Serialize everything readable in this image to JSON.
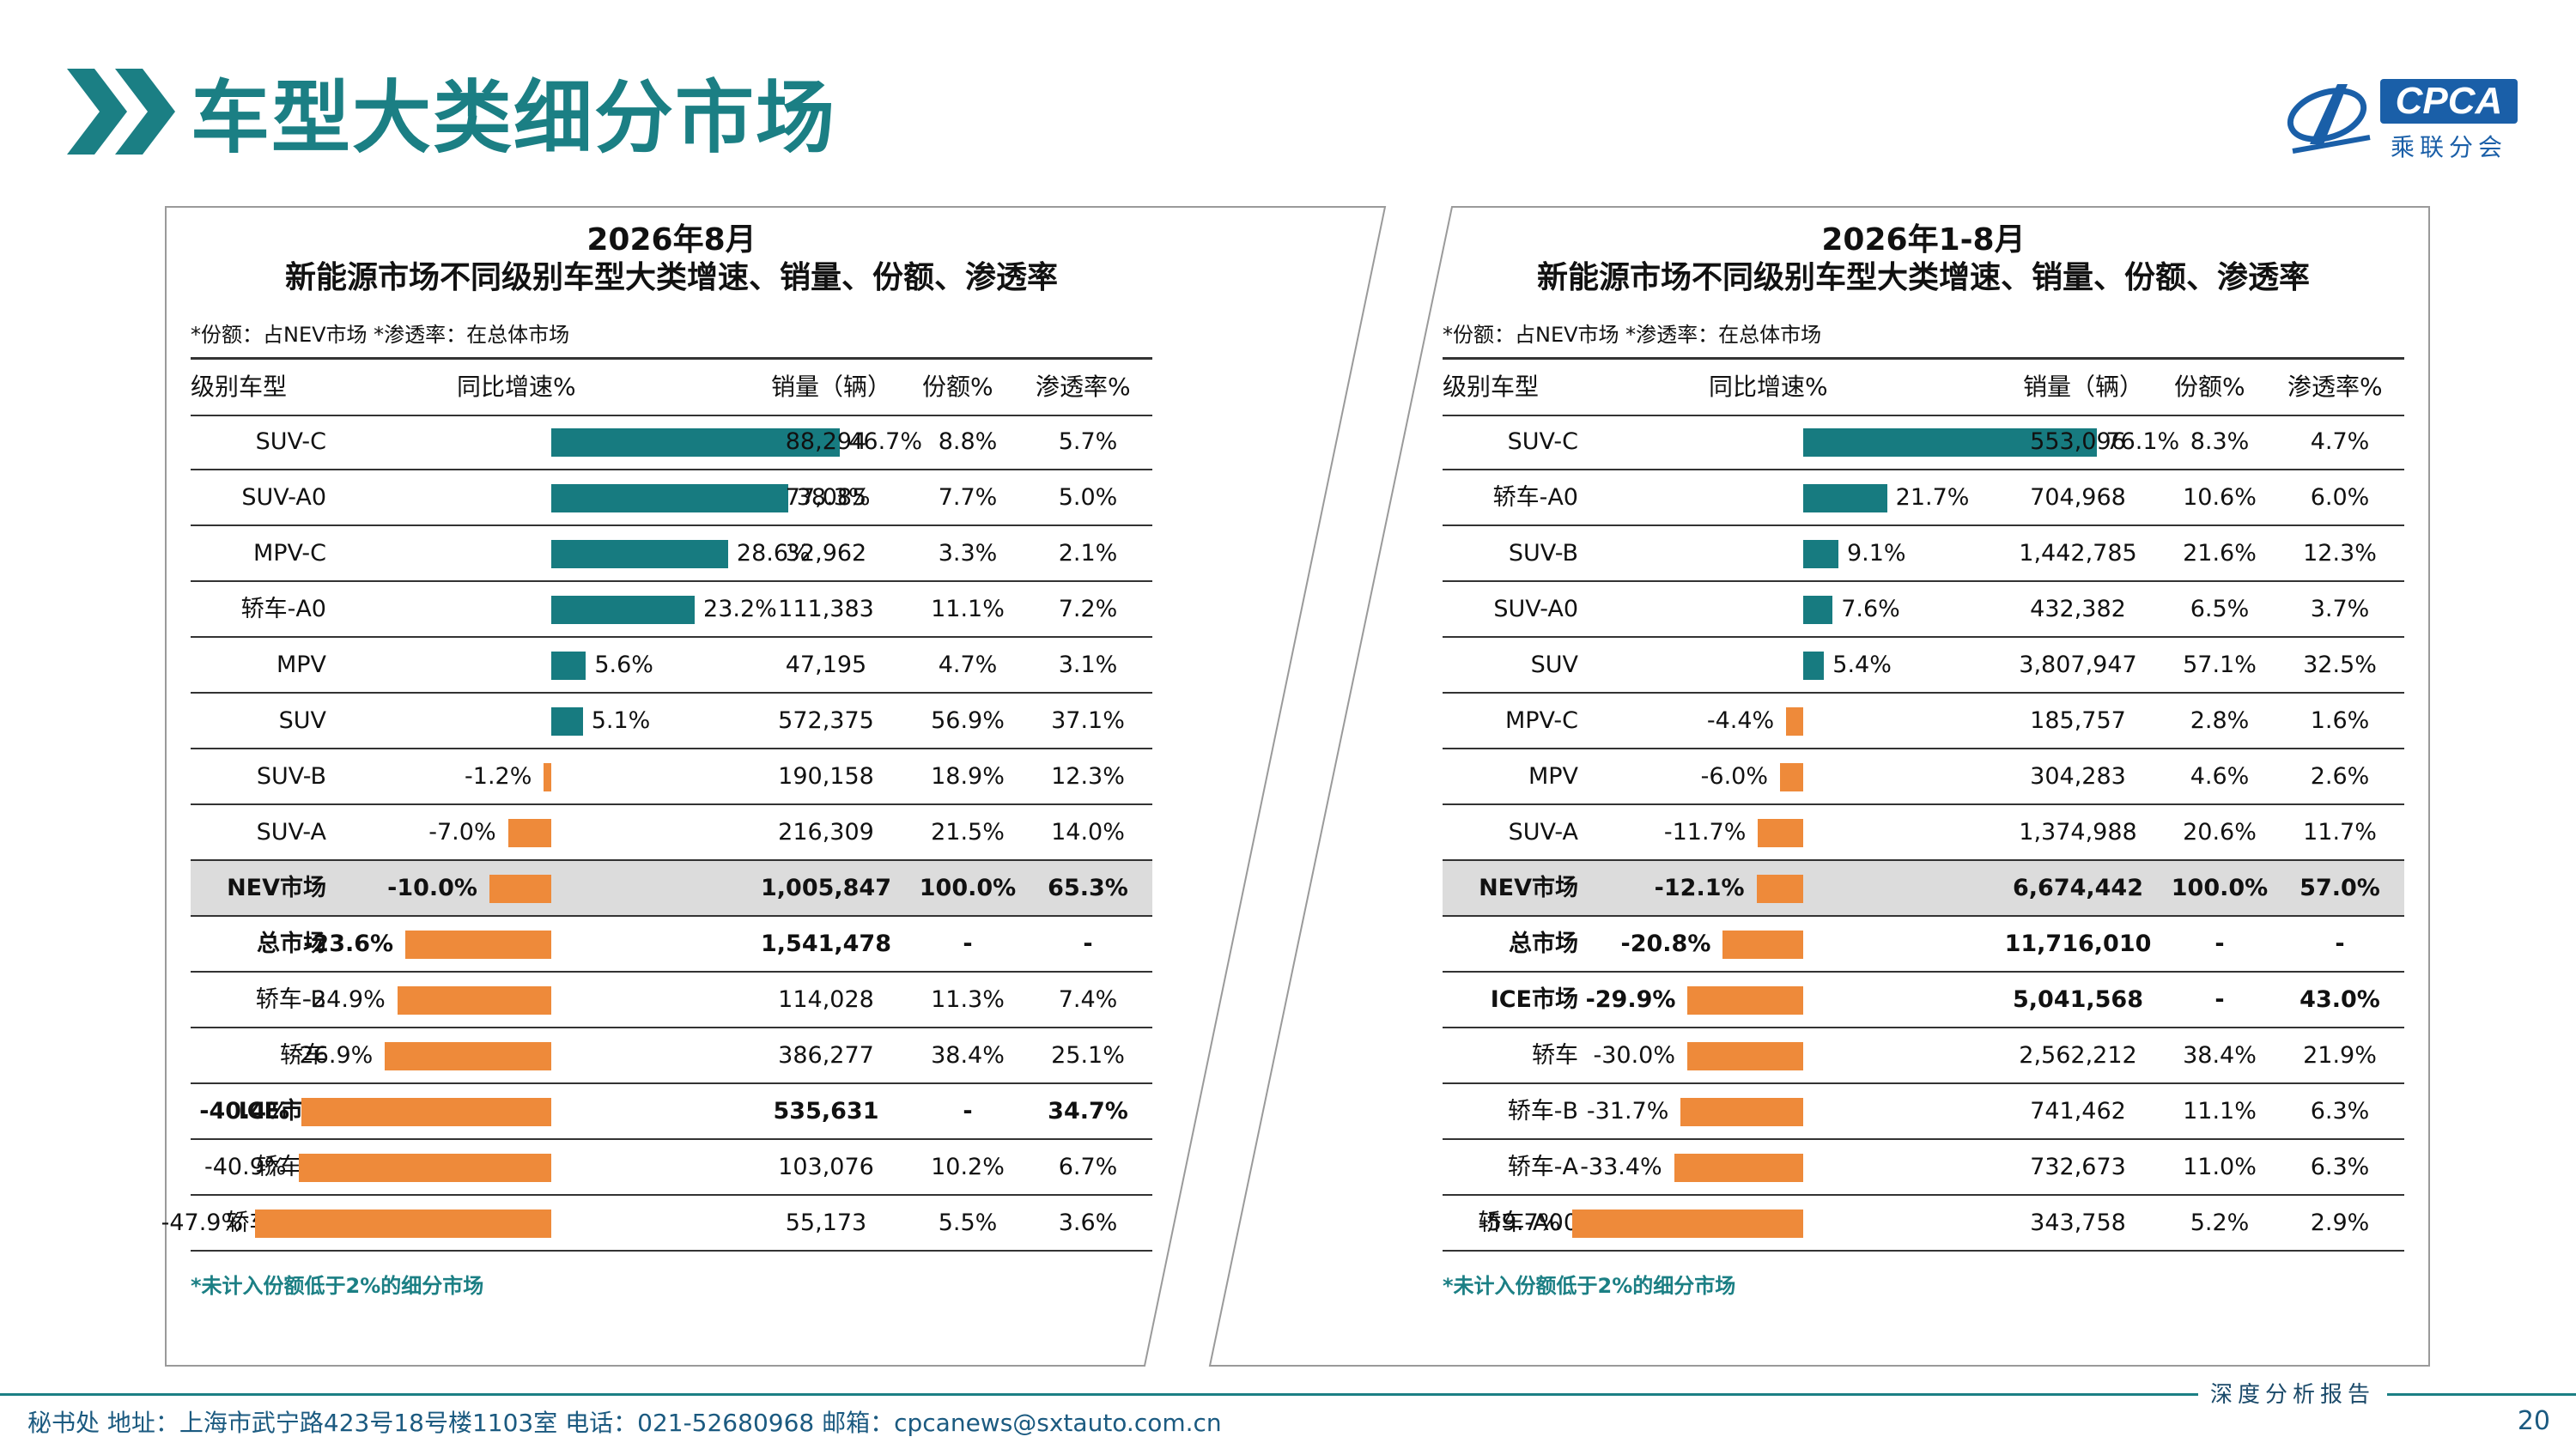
{
  "page": {
    "title": "车型大类细分市场",
    "page_number": "20"
  },
  "logo": {
    "word": "CPCA",
    "sub": "乘联分会"
  },
  "colors": {
    "accent": "#1b7f84",
    "positive_bar": "#177b80",
    "negative_bar": "#ee8a3a",
    "highlight_row": "#dcdcdc"
  },
  "columns": {
    "segment": "级别车型",
    "growth": "同比增速%",
    "sales": "销量（辆）",
    "share": "份额%",
    "penetration": "渗透率%"
  },
  "panels": [
    {
      "title_line1": "2026年8月",
      "title_line2": "新能源市场不同级别车型大类增速、销量、份额、渗透率",
      "note": "*份额：占NEV市场   *渗透率：在总体市场",
      "footnote": "*未计入份额低于2%的细分市场",
      "bar_max": 50,
      "rows": [
        {
          "name": "SUV-C",
          "growth_label": "46.7%",
          "growth": 46.7,
          "sales": "88,294",
          "share": "8.8%",
          "penetration": "5.7%"
        },
        {
          "name": "SUV-A0",
          "growth_label": "38.3%",
          "growth": 38.3,
          "sales": "77,085",
          "share": "7.7%",
          "penetration": "5.0%"
        },
        {
          "name": "MPV-C",
          "growth_label": "28.6%",
          "growth": 28.6,
          "sales": "32,962",
          "share": "3.3%",
          "penetration": "2.1%"
        },
        {
          "name": "轿车-A0",
          "growth_label": "23.2%",
          "growth": 23.2,
          "sales": "111,383",
          "share": "11.1%",
          "penetration": "7.2%"
        },
        {
          "name": "MPV",
          "growth_label": "5.6%",
          "growth": 5.6,
          "sales": "47,195",
          "share": "4.7%",
          "penetration": "3.1%"
        },
        {
          "name": "SUV",
          "growth_label": "5.1%",
          "growth": 5.1,
          "sales": "572,375",
          "share": "56.9%",
          "penetration": "37.1%"
        },
        {
          "name": "SUV-B",
          "growth_label": "-1.2%",
          "growth": -1.2,
          "sales": "190,158",
          "share": "18.9%",
          "penetration": "12.3%"
        },
        {
          "name": "SUV-A",
          "growth_label": "-7.0%",
          "growth": -7.0,
          "sales": "216,309",
          "share": "21.5%",
          "penetration": "14.0%"
        },
        {
          "name": "NEV市场",
          "growth_label": "-10.0%",
          "growth": -10.0,
          "sales": "1,005,847",
          "share": "100.0%",
          "penetration": "65.3%",
          "bold": true,
          "highlight": true
        },
        {
          "name": "总市场",
          "growth_label": "-23.6%",
          "growth": -23.6,
          "sales": "1,541,478",
          "share": "-",
          "penetration": "-",
          "bold": true
        },
        {
          "name": "轿车-B",
          "growth_label": "-24.9%",
          "growth": -24.9,
          "sales": "114,028",
          "share": "11.3%",
          "penetration": "7.4%"
        },
        {
          "name": "轿车",
          "growth_label": "-26.9%",
          "growth": -26.9,
          "sales": "386,277",
          "share": "38.4%",
          "penetration": "25.1%"
        },
        {
          "name": "ICE市场",
          "growth_label": "-40.4%",
          "growth": -40.4,
          "sales": "535,631",
          "share": "-",
          "penetration": "34.7%",
          "bold": true
        },
        {
          "name": "轿车-A",
          "growth_label": "-40.9%",
          "growth": -40.9,
          "sales": "103,076",
          "share": "10.2%",
          "penetration": "6.7%"
        },
        {
          "name": "轿车-A00",
          "growth_label": "-47.9%",
          "growth": -47.9,
          "sales": "55,173",
          "share": "5.5%",
          "penetration": "3.6%"
        }
      ]
    },
    {
      "title_line1": "2026年1-8月",
      "title_line2": "新能源市场不同级别车型大类增速、销量、份额、渗透率",
      "note": "*份额：占NEV市场   *渗透率：在总体市场",
      "footnote": "*未计入份额低于2%的细分市场",
      "bar_max": 80,
      "rows": [
        {
          "name": "SUV-C",
          "growth_label": "76.1%",
          "growth": 76.1,
          "sales": "553,096",
          "share": "8.3%",
          "penetration": "4.7%"
        },
        {
          "name": "轿车-A0",
          "growth_label": "21.7%",
          "growth": 21.7,
          "sales": "704,968",
          "share": "10.6%",
          "penetration": "6.0%"
        },
        {
          "name": "SUV-B",
          "growth_label": "9.1%",
          "growth": 9.1,
          "sales": "1,442,785",
          "share": "21.6%",
          "penetration": "12.3%"
        },
        {
          "name": "SUV-A0",
          "growth_label": "7.6%",
          "growth": 7.6,
          "sales": "432,382",
          "share": "6.5%",
          "penetration": "3.7%"
        },
        {
          "name": "SUV",
          "growth_label": "5.4%",
          "growth": 5.4,
          "sales": "3,807,947",
          "share": "57.1%",
          "penetration": "32.5%"
        },
        {
          "name": "MPV-C",
          "growth_label": "-4.4%",
          "growth": -4.4,
          "sales": "185,757",
          "share": "2.8%",
          "penetration": "1.6%"
        },
        {
          "name": "MPV",
          "growth_label": "-6.0%",
          "growth": -6.0,
          "sales": "304,283",
          "share": "4.6%",
          "penetration": "2.6%"
        },
        {
          "name": "SUV-A",
          "growth_label": "-11.7%",
          "growth": -11.7,
          "sales": "1,374,988",
          "share": "20.6%",
          "penetration": "11.7%"
        },
        {
          "name": "NEV市场",
          "growth_label": "-12.1%",
          "growth": -12.1,
          "sales": "6,674,442",
          "share": "100.0%",
          "penetration": "57.0%",
          "bold": true,
          "highlight": true
        },
        {
          "name": "总市场",
          "growth_label": "-20.8%",
          "growth": -20.8,
          "sales": "11,716,010",
          "share": "-",
          "penetration": "-",
          "bold": true
        },
        {
          "name": "ICE市场",
          "growth_label": "-29.9%",
          "growth": -29.9,
          "sales": "5,041,568",
          "share": "-",
          "penetration": "43.0%",
          "bold": true
        },
        {
          "name": "轿车",
          "growth_label": "-30.0%",
          "growth": -30.0,
          "sales": "2,562,212",
          "share": "38.4%",
          "penetration": "21.9%"
        },
        {
          "name": "轿车-B",
          "growth_label": "-31.7%",
          "growth": -31.7,
          "sales": "741,462",
          "share": "11.1%",
          "penetration": "6.3%"
        },
        {
          "name": "轿车-A",
          "growth_label": "-33.4%",
          "growth": -33.4,
          "sales": "732,673",
          "share": "11.0%",
          "penetration": "6.3%"
        },
        {
          "name": "轿车-A00",
          "growth_label": "-59.7%",
          "growth": -59.7,
          "sales": "343,758",
          "share": "5.2%",
          "penetration": "2.9%"
        }
      ]
    }
  ],
  "footer": {
    "report": "深度分析报告",
    "contact": "秘书处   地址：上海市武宁路423号18号楼1103室   电话：021-52680968   邮箱：cpcanews@sxtauto.com.cn"
  }
}
